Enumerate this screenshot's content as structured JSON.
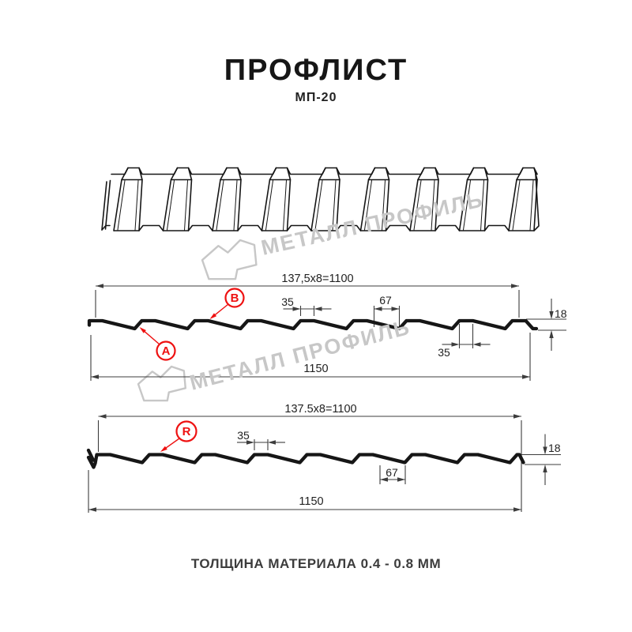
{
  "header": {
    "title": "ПРОФЛИСТ",
    "subtitle": "МП-20"
  },
  "footer": {
    "text": "ТОЛЩИНА МАТЕРИАЛА 0.4 - 0.8 ММ"
  },
  "watermark": {
    "text": "МЕТАЛЛ ПРОФИЛЬ",
    "color": "#c7c7c7"
  },
  "colors": {
    "accent_red": "#ee1111",
    "drawing": "#161616",
    "dim_line": "#3d3d3d",
    "dim_text": "#222222"
  },
  "section1": {
    "dim_width": "137,5x8=1100",
    "dim_rib_top": "35",
    "dim_valley": "67",
    "dim_height": "18",
    "dim_rib_bottom": "35",
    "dim_full_width": "1150",
    "label_a": "A",
    "label_b": "B"
  },
  "section2": {
    "dim_width": "137.5x8=1100",
    "dim_rib_top": "35",
    "dim_valley": "67",
    "dim_height": "18",
    "dim_full_width": "1150",
    "label_r": "R"
  }
}
